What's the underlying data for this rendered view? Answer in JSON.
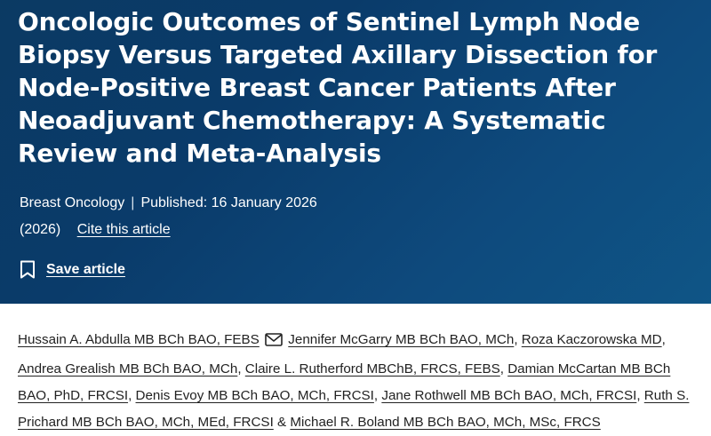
{
  "article": {
    "title": "Oncologic Outcomes of Sentinel Lymph Node Biopsy Versus Targeted Axillary Dissection for Node-Positive Breast Cancer Patients After Neoadjuvant Chemotherapy: A Systematic Review and Meta-Analysis",
    "journal": "Breast Oncology",
    "separator": "|",
    "published": "Published: 16 January 2026",
    "year": "(2026)",
    "cite_label": "Cite this article",
    "save_label": "Save article"
  },
  "authors": [
    {
      "name": "Hussain A. Abdulla MB BCh BAO, FEBS",
      "suffix": " "
    },
    {
      "name": "Jennifer McGarry MB BCh BAO, MCh",
      "suffix": ", "
    },
    {
      "name": "Roza Kaczorowska MD",
      "suffix": ", "
    },
    {
      "name": "Andrea Grealish MB BCh BAO, MCh",
      "suffix": ", "
    },
    {
      "name": "Claire L. Rutherford MBChB, FRCS, FEBS",
      "suffix": ", "
    },
    {
      "name": "Damian McCartan MB BCh BAO, PhD, FRCSI",
      "suffix": ", "
    },
    {
      "name": "Denis Evoy MB BCh BAO, MCh, FRCSI",
      "suffix": ", "
    },
    {
      "name": "Jane Rothwell MB BCh BAO, MCh, FRCSI",
      "suffix": ", "
    },
    {
      "name": "Ruth S. Prichard MB BCh BAO, MCh, MEd, FRCSI",
      "suffix": " & "
    },
    {
      "name": "Michael R. Boland MB BCh BAO, MCh, MSc, FRCS",
      "suffix": ""
    }
  ],
  "icons": {
    "mail": "mail-icon",
    "bookmark": "bookmark-icon"
  },
  "colors": {
    "hero": "#0b3a63",
    "text_dark": "#222222"
  }
}
